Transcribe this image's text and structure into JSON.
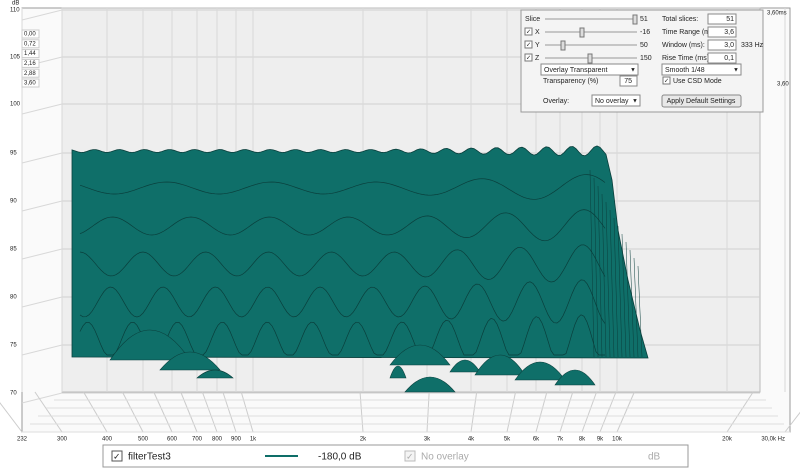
{
  "plot": {
    "y_unit": "dB",
    "y_labels": [
      110,
      105,
      100,
      95,
      90,
      85,
      80,
      75,
      70
    ],
    "time_labels": [
      "0,00",
      "0,72",
      "1,44",
      "2,16",
      "2,88",
      "3,60"
    ],
    "time_end_top": "3,60ms",
    "time_end_side": "3,60",
    "x_labels": [
      "232",
      "300",
      "400",
      "500",
      "600",
      "700",
      "800",
      "900",
      "1k",
      "2k",
      "3k",
      "4k",
      "5k",
      "6k",
      "7k",
      "8k",
      "9k",
      "10k",
      "20k",
      "30,0k Hz"
    ]
  },
  "controls": {
    "slice_label": "Slice",
    "slice_value": 51,
    "x_label": "X",
    "x_value": -16,
    "y_label": "Y",
    "y_value": 50,
    "z_label": "Z",
    "z_value": 150,
    "overlay_mode": "Overlay Transparent",
    "transparency_label": "Transparency (%)",
    "transparency_value": 75,
    "overlay_label": "Overlay:",
    "overlay_value": "No overlay",
    "total_slices_label": "Total slices:",
    "total_slices_value": 51,
    "time_range_label": "Time Range (ms):",
    "time_range_value": "3,6",
    "window_label": "Window (ms):",
    "window_value": "3,0",
    "window_freq": "333 Hz",
    "rise_time_label": "Rise Time (ms):",
    "rise_time_value": "0,1",
    "smoothing": "Smooth 1/48",
    "csd_label": "Use CSD Mode",
    "apply_button": "Apply Default Settings"
  },
  "legend": {
    "measurement": "filterTest3",
    "level": "-180,0 dB",
    "overlay": "No overlay",
    "unit": "dB"
  }
}
